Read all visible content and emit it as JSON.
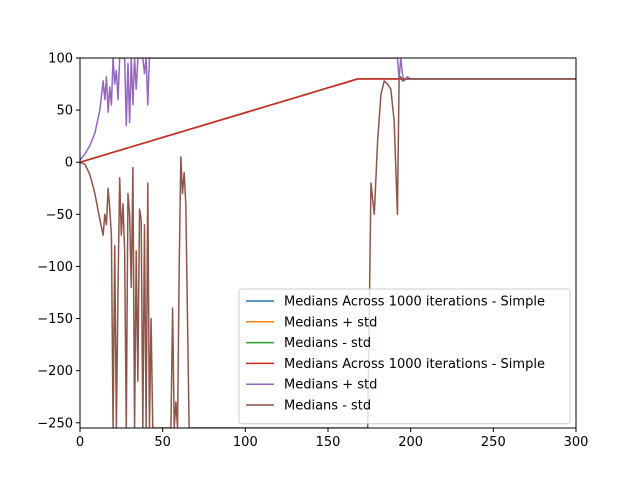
{
  "chart_data": {
    "type": "line",
    "title": "",
    "xlabel": "",
    "ylabel": "",
    "xlim": [
      0,
      300
    ],
    "ylim": [
      -255,
      100
    ],
    "xticks": [
      0,
      50,
      100,
      150,
      200,
      250,
      300
    ],
    "yticks": [
      100,
      50,
      0,
      -50,
      -100,
      -150,
      -200,
      -250
    ],
    "grid": false,
    "legend_position": "lower-right",
    "series": [
      {
        "name": "Medians Across 1000 iterations - Simple",
        "color": "#1f77b4",
        "x": [
          0,
          168,
          300
        ],
        "y": [
          0,
          80,
          80
        ]
      },
      {
        "name": "Medians + std",
        "color": "#ff7f0e",
        "x": [
          0,
          168,
          300
        ],
        "y": [
          0,
          80,
          80
        ]
      },
      {
        "name": "Medians - std",
        "color": "#2ca02c",
        "x": [
          0,
          168,
          300
        ],
        "y": [
          0,
          80,
          80
        ]
      },
      {
        "name": "Medians Across 1000 iterations - Simple",
        "color": "#d62728",
        "x": [
          0,
          20,
          40,
          60,
          80,
          100,
          120,
          140,
          150,
          160,
          168,
          175,
          200,
          250,
          300
        ],
        "y": [
          0,
          9.5,
          19,
          28.5,
          38,
          47.5,
          57,
          66.5,
          71.5,
          76,
          80,
          80,
          80,
          80,
          80
        ]
      },
      {
        "name": "Medians + std",
        "color": "#9467bd",
        "x": [
          0,
          3,
          6,
          9,
          12,
          14,
          15,
          16,
          17,
          18,
          19,
          20,
          21,
          22,
          23,
          24,
          25,
          26,
          27,
          28,
          29,
          30,
          31,
          32,
          33,
          34,
          35,
          36,
          37,
          38,
          39,
          40,
          41,
          42,
          43,
          44,
          46,
          48,
          52,
          56,
          60,
          64,
          68,
          70,
          72,
          74,
          76,
          78,
          80,
          82,
          84,
          86,
          88,
          90,
          92,
          94,
          96,
          98,
          100,
          102,
          104,
          106,
          108,
          110,
          112,
          114,
          116,
          118,
          120,
          122,
          124,
          126,
          128,
          130,
          132,
          134,
          136,
          138,
          140,
          142,
          144,
          146,
          148,
          150,
          152,
          154,
          156,
          158,
          160,
          164,
          168,
          172,
          176,
          180,
          184,
          188,
          190,
          192,
          193,
          194,
          195,
          196,
          198,
          200,
          205,
          210,
          215,
          250,
          300
        ],
        "y": [
          2,
          8,
          16,
          28,
          50,
          78,
          60,
          82,
          48,
          72,
          55,
          100,
          75,
          88,
          60,
          100,
          100,
          100,
          100,
          35,
          95,
          38,
          100,
          55,
          100,
          70,
          100,
          100,
          100,
          100,
          85,
          100,
          55,
          100,
          100,
          100,
          100,
          100,
          100,
          100,
          100,
          100,
          100,
          100,
          100,
          100,
          100,
          100,
          100,
          100,
          100,
          100,
          100,
          100,
          100,
          100,
          100,
          100,
          100,
          100,
          100,
          100,
          100,
          100,
          100,
          100,
          100,
          100,
          100,
          100,
          100,
          100,
          100,
          100,
          100,
          100,
          100,
          100,
          100,
          100,
          100,
          100,
          100,
          100,
          100,
          100,
          100,
          100,
          100,
          100,
          100,
          100,
          100,
          100,
          100,
          100,
          100,
          100,
          80,
          100,
          85,
          78,
          82,
          80,
          80,
          80,
          80,
          80,
          80
        ]
      },
      {
        "name": "Medians - std",
        "color": "#8c564b",
        "x": [
          0,
          3,
          6,
          9,
          12,
          14,
          15,
          16,
          17,
          18,
          19,
          20,
          21,
          22,
          23,
          24,
          25,
          26,
          27,
          28,
          29,
          30,
          31,
          32,
          33,
          34,
          35,
          36,
          37,
          38,
          39,
          40,
          41,
          42,
          43,
          44,
          46,
          48,
          52,
          55,
          56,
          57,
          58,
          59,
          60,
          61,
          62,
          63,
          64,
          66,
          68,
          70,
          72,
          74,
          76,
          78,
          80,
          82,
          84,
          86,
          88,
          90,
          92,
          94,
          96,
          98,
          100,
          102,
          104,
          106,
          108,
          110,
          112,
          114,
          116,
          118,
          120,
          122,
          124,
          126,
          128,
          130,
          132,
          134,
          136,
          138,
          140,
          142,
          144,
          146,
          148,
          150,
          152,
          154,
          156,
          158,
          160,
          162,
          164,
          166,
          168,
          170,
          172,
          174,
          176,
          178,
          180,
          182,
          184,
          186,
          188,
          190,
          192,
          193,
          194,
          195,
          196,
          198,
          200,
          205,
          210,
          215,
          250,
          300
        ],
        "y": [
          0,
          -2,
          -12,
          -30,
          -55,
          -70,
          -50,
          -60,
          -25,
          -45,
          -70,
          -255,
          -80,
          -255,
          -120,
          -15,
          -70,
          -40,
          -85,
          -255,
          -30,
          -50,
          -120,
          -5,
          -255,
          -85,
          -210,
          -45,
          -55,
          -255,
          -60,
          -255,
          -20,
          -255,
          -150,
          -255,
          -255,
          -255,
          -255,
          -255,
          -140,
          -255,
          -230,
          -255,
          -100,
          5,
          -30,
          -10,
          -40,
          -255,
          -255,
          -255,
          -255,
          -255,
          -255,
          -255,
          -255,
          -255,
          -255,
          -255,
          -255,
          -255,
          -255,
          -255,
          -255,
          -255,
          -255,
          -255,
          -255,
          -255,
          -255,
          -255,
          -255,
          -255,
          -255,
          -255,
          -255,
          -255,
          -255,
          -255,
          -255,
          -255,
          -255,
          -255,
          -255,
          -255,
          -255,
          -255,
          -255,
          -255,
          -255,
          -255,
          -255,
          -255,
          -255,
          -255,
          -255,
          -255,
          -255,
          -255,
          -255,
          -255,
          -255,
          -255,
          -20,
          -50,
          20,
          65,
          78,
          75,
          70,
          40,
          -50,
          80,
          82,
          78,
          80,
          80,
          80,
          80,
          80,
          80,
          80,
          80
        ]
      }
    ]
  }
}
